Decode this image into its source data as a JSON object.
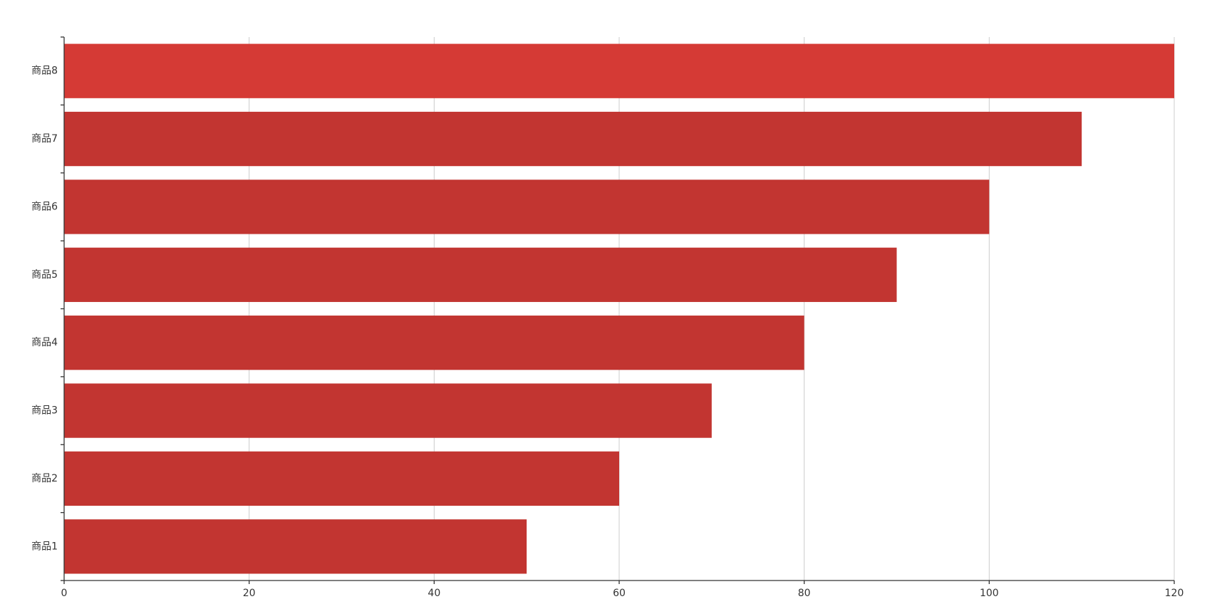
{
  "chart_data": {
    "type": "bar",
    "orientation": "horizontal",
    "categories": [
      "商品1",
      "商品2",
      "商品3",
      "商品4",
      "商品5",
      "商品6",
      "商品7",
      "商品8"
    ],
    "values": [
      50,
      60,
      70,
      80,
      90,
      100,
      110,
      120
    ],
    "xlim": [
      0,
      120
    ],
    "x_ticks": [
      0,
      20,
      40,
      60,
      80,
      100,
      120
    ],
    "grid": "vertical",
    "bar_color": "#c23531",
    "highlight_color": "#d53a35",
    "highlighted_category": "商品8",
    "legend": "none"
  }
}
